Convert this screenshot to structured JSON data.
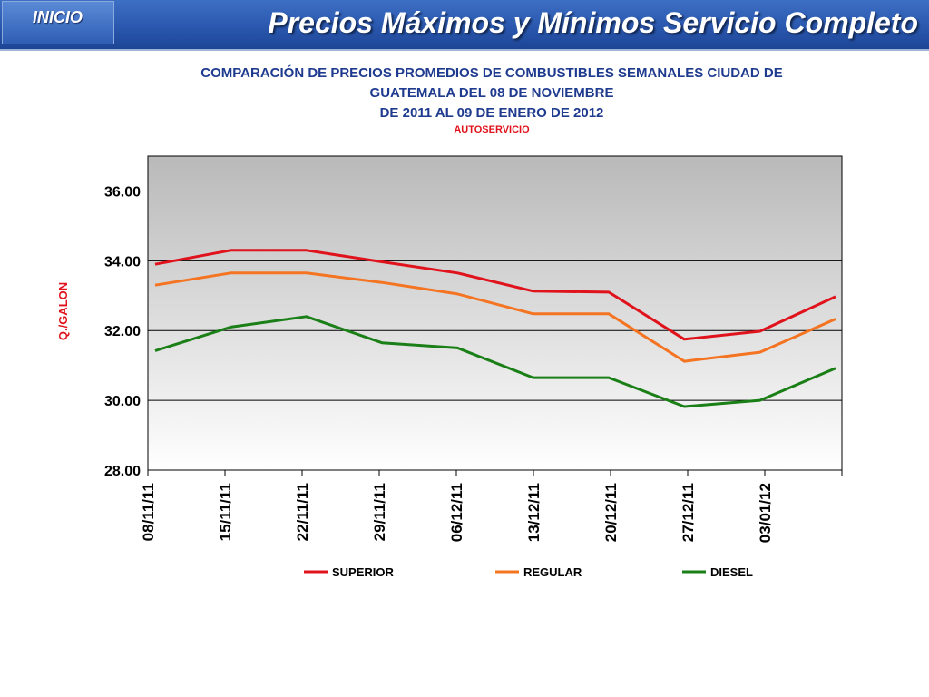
{
  "header": {
    "home_label": "INICIO",
    "title": "Precios Máximos y Mínimos Servicio Completo"
  },
  "chart_data": {
    "type": "line",
    "title_lines": [
      "COMPARACIÓN DE PRECIOS PROMEDIOS DE COMBUSTIBLES SEMANALES CIUDAD DE",
      "GUATEMALA DEL 08 DE NOVIEMBRE",
      "DE 2011 AL 09 DE ENERO DE 2012"
    ],
    "subtitle": "AUTOSERVICIO",
    "ylabel": "Q./GALON",
    "xlabel": "",
    "ylim": [
      28,
      37
    ],
    "yticks": [
      28,
      30,
      32,
      34,
      36
    ],
    "ytick_labels": [
      "28.00",
      "30.00",
      "32.00",
      "34.00",
      "36.00"
    ],
    "categories": [
      "08/11/11",
      "15/11/11",
      "22/11/11",
      "29/11/11",
      "06/12/11",
      "13/12/11",
      "20/12/11",
      "27/12/11",
      "03/01/12",
      ""
    ],
    "grid": true,
    "legend_position": "bottom",
    "series": [
      {
        "name": "SUPERIOR",
        "color": "#e0131c",
        "values": [
          33.9,
          34.3,
          34.3,
          33.97,
          33.65,
          33.13,
          33.1,
          31.75,
          31.98,
          32.97
        ]
      },
      {
        "name": "REGULAR",
        "color": "#f47422",
        "values": [
          33.3,
          33.65,
          33.65,
          33.38,
          33.05,
          32.48,
          32.48,
          31.12,
          31.38,
          32.33
        ]
      },
      {
        "name": "DIESEL",
        "color": "#1a7f16",
        "values": [
          31.42,
          32.1,
          32.4,
          31.65,
          31.5,
          30.65,
          30.65,
          29.82,
          30.0,
          30.92
        ]
      }
    ]
  }
}
